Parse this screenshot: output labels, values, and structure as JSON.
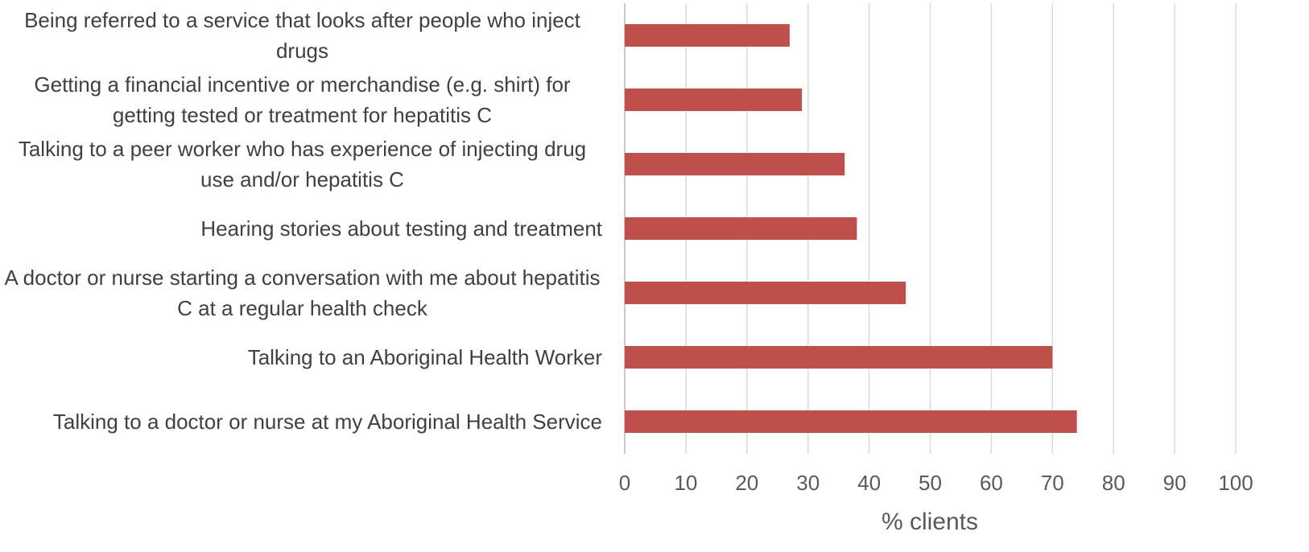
{
  "chart_data": {
    "type": "barh",
    "categories": [
      "Being referred to a service that looks after people who inject drugs",
      "Getting a financial incentive or merchandise (e.g. shirt) for getting tested or treatment for hepatitis C",
      "Talking to a peer worker who has experience of injecting drug use and/or hepatitis C",
      "Hearing stories about testing and treatment ",
      "A doctor or nurse starting a conversation with me about hepatitis C at a regular health check",
      "Talking to an Aboriginal Health Worker",
      "Talking to a doctor or nurse at my Aboriginal Health Service"
    ],
    "values": [
      27,
      29,
      36,
      38,
      46,
      70,
      74
    ],
    "color": "#c0504d",
    "xlabel": "% clients",
    "xlim": [
      0,
      100
    ],
    "xticks": [
      0,
      10,
      20,
      30,
      40,
      50,
      60,
      70,
      80,
      90,
      100
    ],
    "grid": true
  }
}
